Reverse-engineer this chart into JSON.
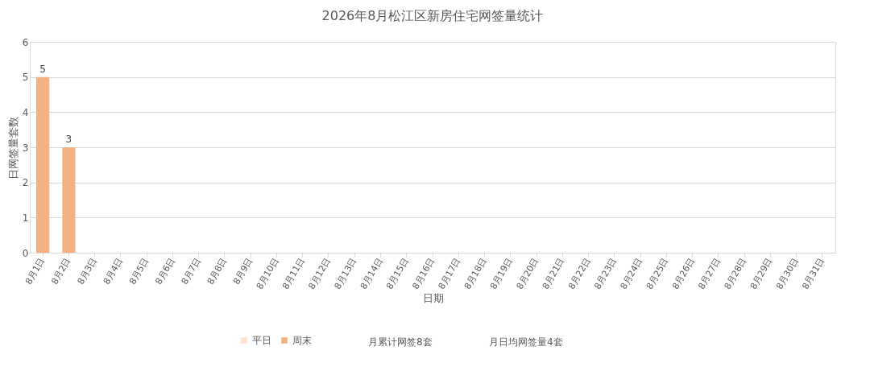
{
  "chart_data": {
    "type": "bar",
    "title": "2026年8月松江区新房住宅网签量统计",
    "xlabel": "日期",
    "ylabel": "日网签量套数",
    "categories": [
      "8月1日",
      "8月2日",
      "8月3日",
      "8月4日",
      "8月5日",
      "8月6日",
      "8月7日",
      "8月8日",
      "8月9日",
      "8月10日",
      "8月11日",
      "8月12日",
      "8月13日",
      "8月14日",
      "8月15日",
      "8月16日",
      "8月17日",
      "8月18日",
      "8月19日",
      "8月20日",
      "8月21日",
      "8月22日",
      "8月23日",
      "8月24日",
      "8月25日",
      "8月26日",
      "8月27日",
      "8月28日",
      "8月29日",
      "8月30日",
      "8月31日"
    ],
    "series": [
      {
        "name": "平日",
        "color": "#fbe5d6",
        "values": [
          null,
          null,
          null,
          null,
          null,
          null,
          null,
          null,
          null,
          null,
          null,
          null,
          null,
          null,
          null,
          null,
          null,
          null,
          null,
          null,
          null,
          null,
          null,
          null,
          null,
          null,
          null,
          null,
          null,
          null,
          null
        ]
      },
      {
        "name": "周末",
        "color": "#f4b183",
        "values": [
          5,
          3,
          null,
          null,
          null,
          null,
          null,
          null,
          null,
          null,
          null,
          null,
          null,
          null,
          null,
          null,
          null,
          null,
          null,
          null,
          null,
          null,
          null,
          null,
          null,
          null,
          null,
          null,
          null,
          null,
          null
        ]
      }
    ],
    "ylim": [
      0,
      6
    ],
    "yticks": [
      0,
      1,
      2,
      3,
      4,
      5,
      6
    ],
    "grid": "y",
    "legend": "bottom",
    "data_labels": true,
    "annotations": [
      "月累计网签8套",
      "月日均网签量4套"
    ]
  }
}
